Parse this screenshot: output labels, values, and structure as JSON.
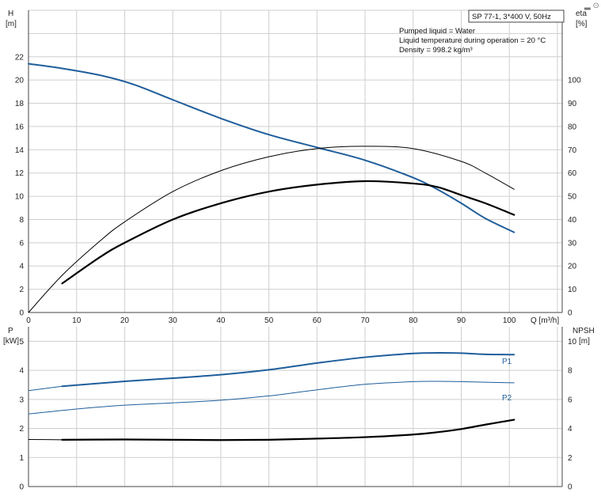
{
  "title_box": "SP 77-1, 3*400 V, 50Hz",
  "info_lines": [
    "Pumped liquid = Water",
    "Liquid temperature during operation = 20 °C",
    "Density = 998.2 kg/m³"
  ],
  "corner_mark": "▂ ⊙",
  "colors": {
    "blue": "#1f5e9b",
    "black": "#000000",
    "grid": "#cfcfcf",
    "axis": "#444444"
  },
  "chart_data": [
    {
      "type": "line",
      "panel": "top",
      "xlabel": "Q [m³/h]",
      "ylabel": "H\n[m]",
      "ylabel_right": "eta\n[%]",
      "xlim": [
        0,
        111
      ],
      "ylim": [
        0,
        26
      ],
      "ylim_right": [
        0,
        130
      ],
      "xticks": [
        0,
        10,
        20,
        30,
        40,
        50,
        60,
        70,
        80,
        90,
        100
      ],
      "yticks": [
        0,
        2,
        4,
        6,
        8,
        10,
        12,
        14,
        16,
        18,
        20,
        22
      ],
      "yticks_right": [
        0,
        10,
        20,
        30,
        40,
        50,
        60,
        70,
        80,
        90,
        100
      ],
      "grid": true,
      "series": [
        {
          "key": "H",
          "axis": "left",
          "color": "#1f5e9b",
          "width": 2,
          "x": [
            0,
            7,
            15,
            22,
            30,
            40,
            50,
            60,
            70,
            80,
            85,
            90,
            95,
            101
          ],
          "y": [
            21.4,
            21.0,
            20.4,
            19.6,
            18.3,
            16.7,
            15.3,
            14.2,
            13.1,
            11.6,
            10.6,
            9.4,
            8.1,
            6.9
          ]
        },
        {
          "key": "eta_pump",
          "axis": "right",
          "color": "#000000",
          "width": 1,
          "x": [
            0,
            7,
            15,
            20,
            30,
            40,
            50,
            60,
            70,
            80,
            90,
            95,
            101
          ],
          "y": [
            0,
            16,
            31,
            39,
            52,
            61,
            67,
            70.5,
            71.5,
            70.5,
            65,
            60,
            53
          ]
        },
        {
          "key": "eta_total",
          "axis": "right",
          "color": "#000000",
          "width": 2.2,
          "x": [
            7,
            15,
            20,
            30,
            40,
            50,
            60,
            70,
            80,
            85,
            90,
            95,
            101
          ],
          "y": [
            12.5,
            24,
            30,
            40,
            47,
            52,
            55,
            56.5,
            55.5,
            54,
            50.5,
            47,
            42
          ]
        }
      ]
    },
    {
      "type": "line",
      "panel": "bottom",
      "ylabel": "P\n[kW]",
      "ylabel_right": "NPSH\n[m]",
      "xlim": [
        0,
        111
      ],
      "ylim": [
        0,
        5.5
      ],
      "ylim_right": [
        0,
        11
      ],
      "yticks": [
        0,
        1,
        2,
        3,
        4,
        5
      ],
      "yticks_right": [
        0,
        2,
        4,
        6,
        8,
        10
      ],
      "grid": true,
      "series": [
        {
          "key": "P1",
          "name": "P1",
          "axis": "left",
          "color": "#1f5e9b",
          "width": 2,
          "x": [
            7,
            20,
            30,
            40,
            50,
            60,
            70,
            80,
            85,
            90,
            95,
            101
          ],
          "y": [
            3.45,
            3.62,
            3.73,
            3.85,
            4.02,
            4.25,
            4.45,
            4.58,
            4.6,
            4.59,
            4.55,
            4.54
          ]
        },
        {
          "key": "P2_ext",
          "axis": "left",
          "color": "#1f5e9b",
          "width": 1,
          "x": [
            0,
            7
          ],
          "y": [
            3.3,
            3.45
          ]
        },
        {
          "key": "P2",
          "name": "P2",
          "axis": "left",
          "color": "#1f5e9b",
          "width": 1,
          "x": [
            0,
            10,
            20,
            30,
            40,
            50,
            60,
            70,
            80,
            85,
            90,
            95,
            101
          ],
          "y": [
            2.5,
            2.67,
            2.8,
            2.88,
            2.97,
            3.12,
            3.33,
            3.52,
            3.61,
            3.62,
            3.61,
            3.59,
            3.57
          ]
        },
        {
          "key": "NPSH_ext",
          "axis": "right",
          "color": "#000000",
          "width": 1,
          "x": [
            0,
            7
          ],
          "y": [
            3.24,
            3.22
          ]
        },
        {
          "key": "NPSH",
          "axis": "right",
          "color": "#000000",
          "width": 2.2,
          "x": [
            7,
            20,
            30,
            40,
            50,
            60,
            70,
            80,
            85,
            90,
            95,
            101
          ],
          "y": [
            3.22,
            3.24,
            3.22,
            3.2,
            3.22,
            3.3,
            3.4,
            3.58,
            3.74,
            3.96,
            4.26,
            4.6
          ]
        }
      ]
    }
  ]
}
